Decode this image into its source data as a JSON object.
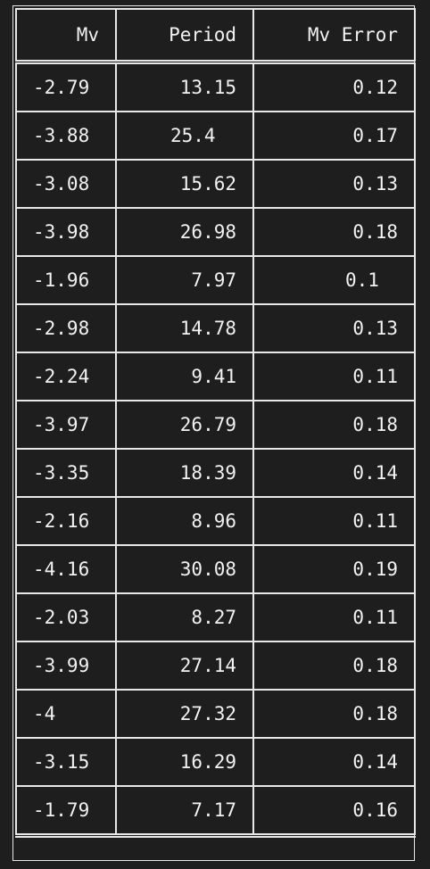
{
  "table": {
    "headers": [
      "Mv",
      "Period",
      "Mv Error"
    ],
    "rows": [
      [
        "-2.79",
        "13.15",
        "0.12"
      ],
      [
        "-3.88",
        "25.4",
        "0.17"
      ],
      [
        "-3.08",
        "15.62",
        "0.13"
      ],
      [
        "-3.98",
        "26.98",
        "0.18"
      ],
      [
        "-1.96",
        "7.97",
        "0.1"
      ],
      [
        "-2.98",
        "14.78",
        "0.13"
      ],
      [
        "-2.24",
        "9.41",
        "0.11"
      ],
      [
        "-3.97",
        "26.79",
        "0.18"
      ],
      [
        "-3.35",
        "18.39",
        "0.14"
      ],
      [
        "-2.16",
        "8.96",
        "0.11"
      ],
      [
        "-4.16",
        "30.08",
        "0.19"
      ],
      [
        "-2.03",
        "8.27",
        "0.11"
      ],
      [
        "-3.99",
        "27.14",
        "0.18"
      ],
      [
        "-4",
        "27.32",
        "0.18"
      ],
      [
        "-3.15",
        "16.29",
        "0.14"
      ],
      [
        "-1.79",
        "7.17",
        "0.16"
      ]
    ]
  }
}
